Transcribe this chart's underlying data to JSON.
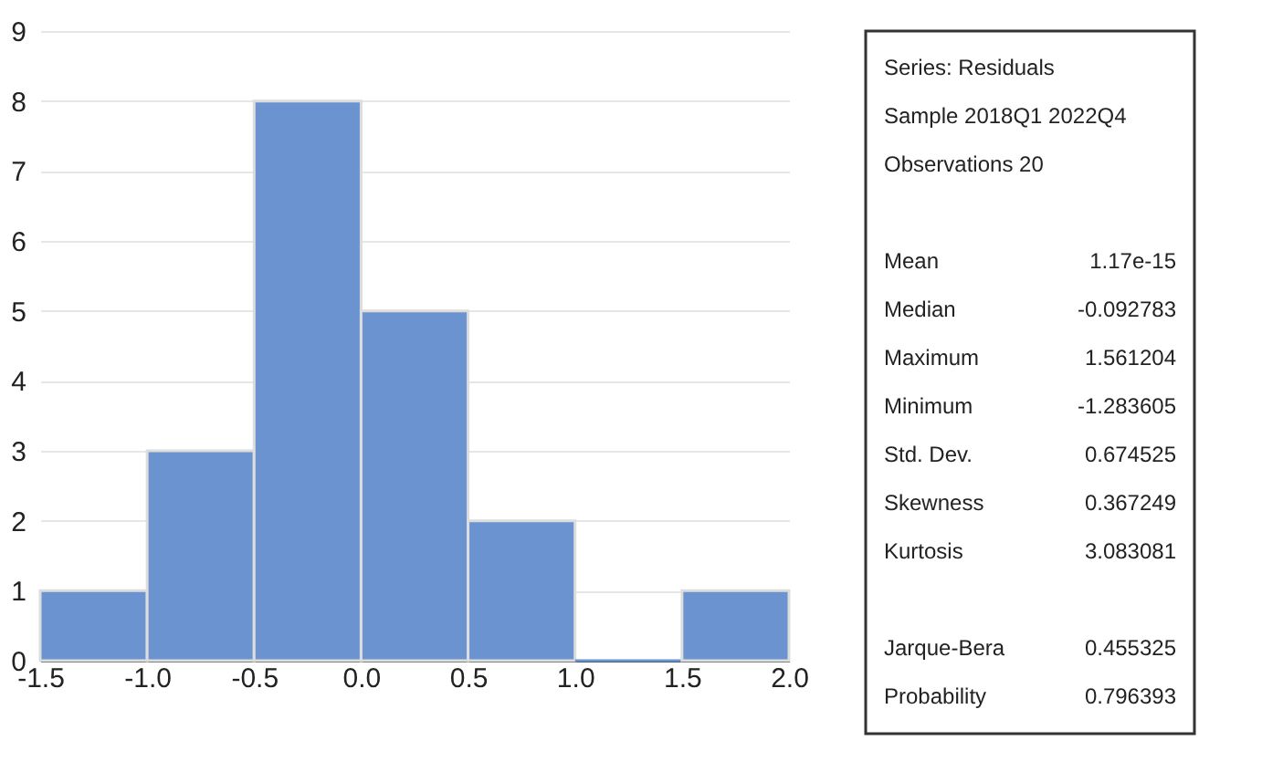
{
  "chart_data": [
    {
      "type": "histogram",
      "bins": [
        -1.5,
        -1.0,
        -0.5,
        0.0,
        0.5,
        1.0,
        1.5,
        2.0
      ],
      "values": [
        1,
        3,
        8,
        5,
        2,
        0,
        1
      ],
      "color": "#6a93d0",
      "xlim": [
        -1.5,
        2.0
      ],
      "xticks": [
        {
          "value": -1.5,
          "label": "-1.5"
        },
        {
          "value": -1.0,
          "label": "-1.0"
        },
        {
          "value": -0.5,
          "label": "-0.5"
        },
        {
          "value": 0.0,
          "label": "0.0"
        },
        {
          "value": 0.5,
          "label": "0.5"
        },
        {
          "value": 1.0,
          "label": "1.0"
        },
        {
          "value": 1.5,
          "label": "1.5"
        },
        {
          "value": 2.0,
          "label": "2.0"
        }
      ],
      "ylim": [
        0,
        9
      ],
      "yticks": [
        0,
        1,
        2,
        3,
        4,
        5,
        6,
        7,
        8,
        9
      ],
      "grid": "y"
    },
    {
      "type": "other",
      "annotations": [
        "Series: Residuals",
        "Sample 2018Q1 2022Q4",
        "Observations 20"
      ],
      "categories": [
        null,
        "Mean",
        "Median",
        "Maximum",
        "Minimum",
        "Std. Dev.",
        "Skewness",
        "Kurtosis",
        null,
        "Jarque-Bera",
        "Probability"
      ],
      "value_labels": [
        null,
        "1.17e-15",
        "-0.092783",
        "1.561204",
        "-1.283605",
        "0.674525",
        "0.367249",
        "3.083081",
        null,
        "0.455325",
        "0.796393"
      ]
    }
  ]
}
